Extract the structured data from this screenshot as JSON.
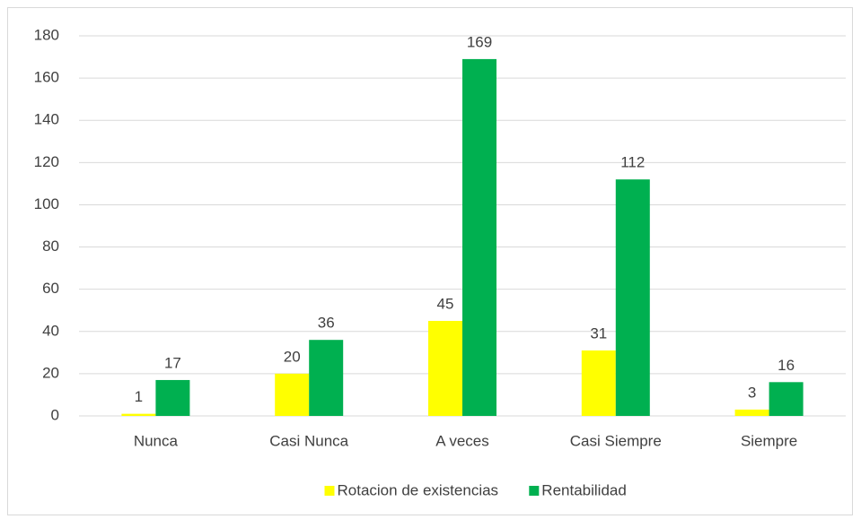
{
  "chart_data": {
    "type": "bar",
    "categories": [
      "Nunca",
      "Casi Nunca",
      "A veces",
      "Casi Siempre",
      "Siempre"
    ],
    "series": [
      {
        "name": "Rotacion de existencias",
        "color": "#ffff00",
        "values": [
          1,
          20,
          45,
          31,
          3
        ]
      },
      {
        "name": "Rentabilidad",
        "color": "#00b050",
        "values": [
          17,
          36,
          169,
          112,
          16
        ]
      }
    ],
    "ylim": [
      0,
      180
    ],
    "yticks": [
      0,
      20,
      40,
      60,
      80,
      100,
      120,
      140,
      160,
      180
    ],
    "grid": true,
    "legend": "bottom",
    "data_labels": true
  }
}
